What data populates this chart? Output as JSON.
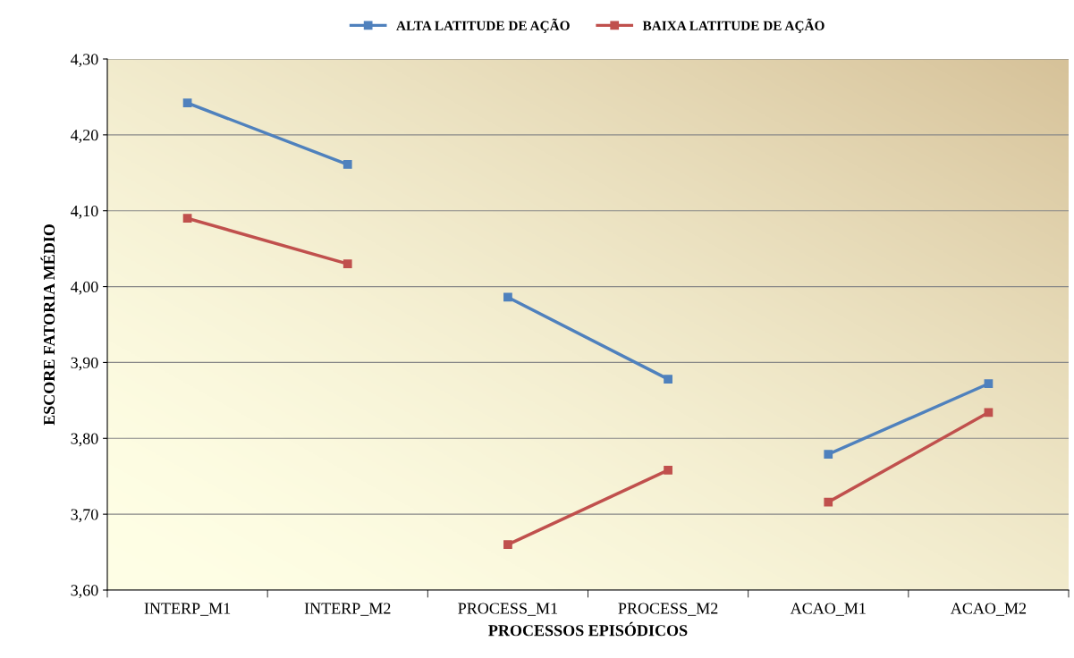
{
  "chart_data": {
    "type": "line",
    "xlabel": "PROCESSOS EPISÓDICOS",
    "ylabel": "ESCORE FATORIA MÉDIO",
    "categories": [
      "INTERP_M1",
      "INTERP_M2",
      "PROCESS_M1",
      "PROCESS_M2",
      "ACAO_M1",
      "ACAO_M2"
    ],
    "series": [
      {
        "name": "ALTA LATITUDE DE AÇÃO",
        "color": "#4f81bd",
        "values": [
          4.242,
          4.161,
          null,
          null,
          null,
          null
        ]
      },
      {
        "name": "BAIXA LATITUDE DE AÇÃO",
        "color": "#c0504d",
        "values": [
          4.09,
          4.03,
          null,
          null,
          null,
          null
        ]
      },
      {
        "color": "#4f81bd",
        "values": [
          null,
          null,
          3.986,
          3.878,
          null,
          null
        ]
      },
      {
        "color": "#c0504d",
        "values": [
          null,
          null,
          3.66,
          3.758,
          null,
          null
        ]
      },
      {
        "color": "#4f81bd",
        "values": [
          null,
          null,
          null,
          null,
          3.779,
          3.872
        ]
      },
      {
        "color": "#c0504d",
        "values": [
          null,
          null,
          null,
          null,
          3.716,
          3.834
        ]
      }
    ],
    "ylim": [
      3.6,
      4.3
    ],
    "yticks": [
      {
        "value": 3.6,
        "label": "3,60"
      },
      {
        "value": 3.7,
        "label": "3,70"
      },
      {
        "value": 3.8,
        "label": "3,80"
      },
      {
        "value": 3.9,
        "label": "3,90"
      },
      {
        "value": 4.0,
        "label": "4,00"
      },
      {
        "value": 4.1,
        "label": "4,10"
      },
      {
        "value": 4.2,
        "label": "4,20"
      },
      {
        "value": 4.3,
        "label": "4,30"
      }
    ],
    "grid": "y",
    "legend": "top",
    "marker": "square",
    "line_style": "solid"
  }
}
